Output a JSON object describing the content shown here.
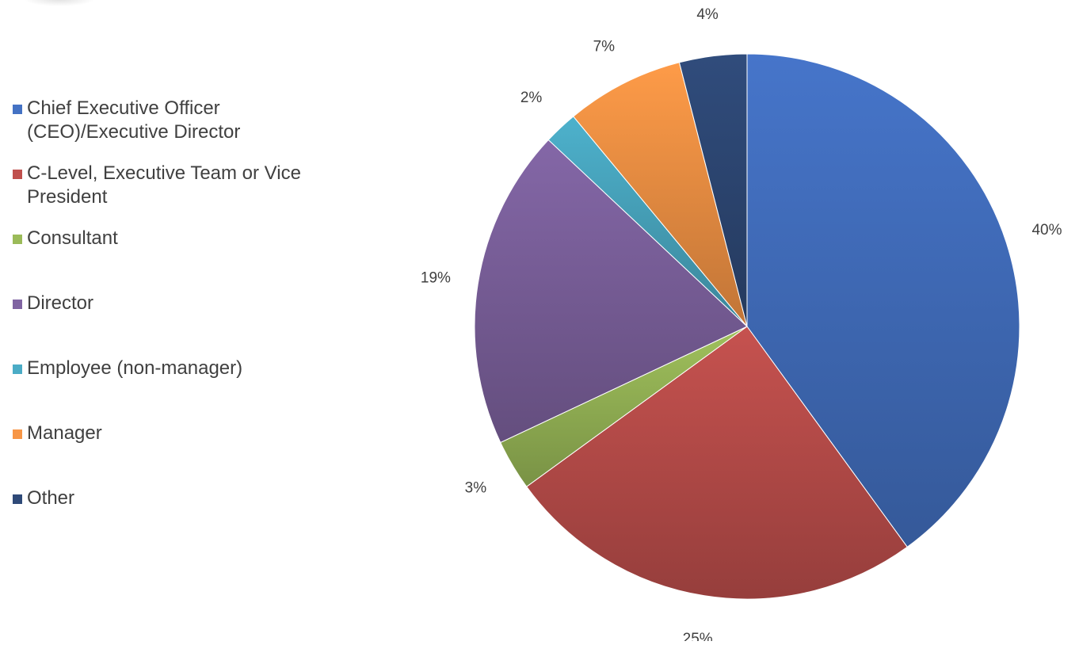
{
  "chart_data": {
    "type": "pie",
    "title": "",
    "legend_position": "left",
    "categories": [
      "Chief Executive Officer (CEO)/Executive Director",
      "C-Level, Executive Team or Vice President",
      "Consultant",
      "Director",
      "Employee (non-manager)",
      "Manager",
      "Other"
    ],
    "values": [
      40,
      25,
      3,
      19,
      2,
      7,
      4
    ],
    "data_labels": [
      "40%",
      "25%",
      "3%",
      "19%",
      "2%",
      "7%",
      "4%"
    ],
    "colors": [
      "#4472C4",
      "#C0504D",
      "#9BBB59",
      "#8064A2",
      "#4BACC6",
      "#F79646",
      "#2F4A78"
    ],
    "label_order_clockwise_from_top": true
  },
  "legend": {
    "items": [
      {
        "label": "Chief Executive Officer (CEO)/Executive Director",
        "color": "#4472C4"
      },
      {
        "label": "C-Level, Executive Team or Vice President",
        "color": "#C0504D"
      },
      {
        "label": "Consultant",
        "color": "#9BBB59"
      },
      {
        "label": "Director",
        "color": "#8064A2"
      },
      {
        "label": "Employee (non-manager)",
        "color": "#4BACC6"
      },
      {
        "label": "Manager",
        "color": "#F79646"
      },
      {
        "label": "Other",
        "color": "#2F4A78"
      }
    ]
  }
}
